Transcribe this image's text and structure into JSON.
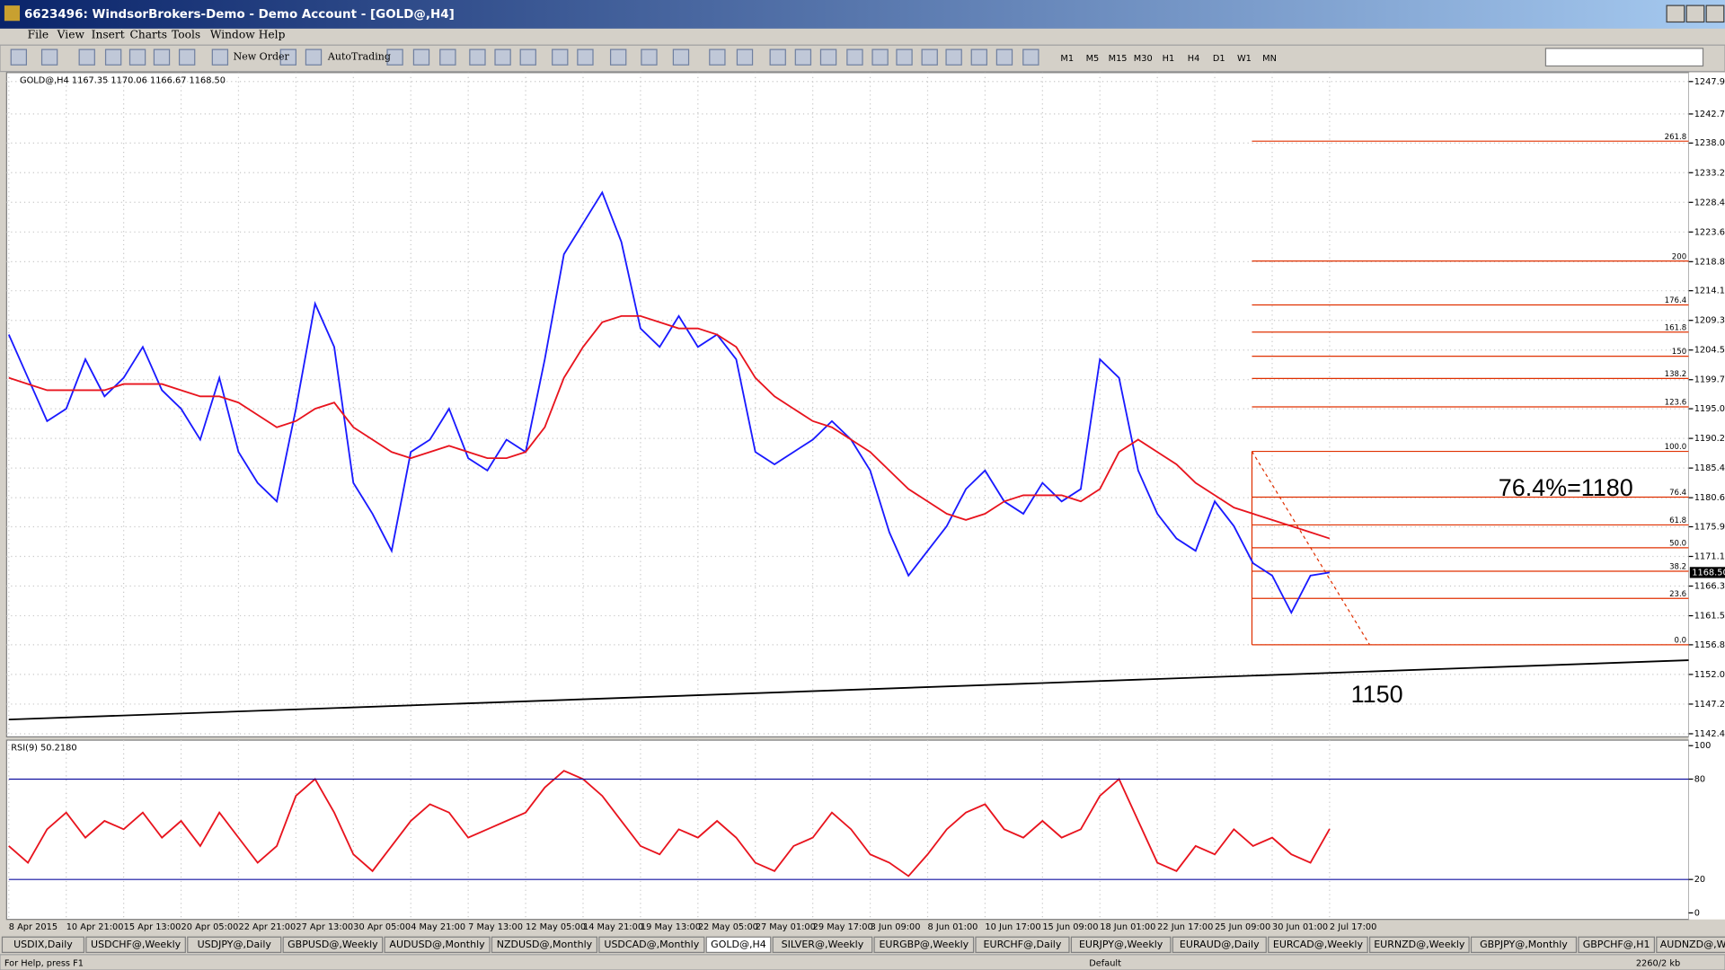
{
  "window": {
    "title": "6623496: WindsorBrokers-Demo - Demo Account - [GOLD@,H4]"
  },
  "menu": [
    "File",
    "View",
    "Insert",
    "Charts",
    "Tools",
    "Window",
    "Help"
  ],
  "toolbar": {
    "new_order": "New Order",
    "autotrading": "AutoTrading",
    "timeframes": [
      "M1",
      "M5",
      "M15",
      "M30",
      "H1",
      "H4",
      "D1",
      "W1",
      "MN"
    ]
  },
  "chart_data": [
    {
      "type": "line",
      "title": "GOLD@,H4  1167.35 1170.06 1166.67 1168.50",
      "categories": [
        "8 Apr 2015",
        null,
        null,
        "10 Apr 21:00",
        null,
        null,
        "15 Apr 13:00",
        null,
        null,
        "20 Apr 05:00",
        null,
        null,
        "22 Apr 21:00",
        null,
        null,
        "27 Apr 13:00",
        null,
        null,
        "30 Apr 05:00",
        null,
        null,
        "4 May 21:00",
        null,
        null,
        "7 May 13:00",
        null,
        null,
        "12 May 05:00",
        null,
        null,
        "14 May 21:00",
        null,
        null,
        "19 May 13:00",
        null,
        null,
        "22 May 05:00",
        null,
        null,
        "27 May 01:00",
        null,
        null,
        "29 May 17:00",
        null,
        null,
        "3 Jun 09:00",
        null,
        null,
        "8 Jun 01:00",
        null,
        null,
        "10 Jun 17:00",
        null,
        null,
        "15 Jun 09:00",
        null,
        null,
        "18 Jun 01:00",
        null,
        null,
        "22 Jun 17:00",
        null,
        null,
        "25 Jun 09:00",
        null,
        null,
        "30 Jun 01:00",
        null,
        null,
        "2 Jul 17:00"
      ],
      "series": [
        {
          "color": "#1a1aff",
          "values": [
            1207,
            1200,
            1193,
            1195,
            1203,
            1197,
            1200,
            1205,
            1198,
            1195,
            1190,
            1200,
            1188,
            1183,
            1180,
            1195,
            1212,
            1205,
            1183,
            1178,
            1172,
            1188,
            1190,
            1195,
            1187,
            1185,
            1190,
            1188,
            1203,
            1220,
            1225,
            1230,
            1222,
            1208,
            1205,
            1210,
            1205,
            1207,
            1203,
            1188,
            1186,
            1188,
            1190,
            1193,
            1190,
            1185,
            1175,
            1168,
            1172,
            1176,
            1182,
            1185,
            1180,
            1178,
            1183,
            1180,
            1182,
            1203,
            1200,
            1185,
            1178,
            1174,
            1172,
            1180,
            1176,
            1170,
            1168,
            1162,
            1168,
            1168.5
          ]
        },
        {
          "color": "#e8141e",
          "values": [
            1200,
            1199,
            1198,
            1198,
            1198,
            1198,
            1199,
            1199,
            1199,
            1198,
            1197,
            1197,
            1196,
            1194,
            1192,
            1193,
            1195,
            1196,
            1192,
            1190,
            1188,
            1187,
            1188,
            1189,
            1188,
            1187,
            1187,
            1188,
            1192,
            1200,
            1205,
            1209,
            1210,
            1210,
            1209,
            1208,
            1208,
            1207,
            1205,
            1200,
            1197,
            1195,
            1193,
            1192,
            1190,
            1188,
            1185,
            1182,
            1180,
            1178,
            1177,
            1178,
            1180,
            1181,
            1181,
            1181,
            1180,
            1182,
            1188,
            1190,
            1188,
            1186,
            1183,
            1181,
            1179,
            1178,
            1177,
            1176,
            1175,
            1174
          ]
        }
      ],
      "ylim": [
        1141.9,
        1249.4
      ],
      "yticks": [
        1247.95,
        {
          "value": 1242.7,
          "label": "1242.70"
        },
        {
          "value": 1238,
          "label": "1238.00"
        },
        {
          "value": 1233.2,
          "label": "1233.20"
        },
        {
          "value": 1228.4,
          "label": "1228.40"
        },
        {
          "value": 1223.6,
          "label": "1223.60"
        },
        {
          "value": 1218.8,
          "label": "1218.80"
        },
        {
          "value": 1214.1,
          "label": "1214.10"
        },
        {
          "value": 1209.3,
          "label": "1209.30"
        },
        {
          "value": 1204.5,
          "label": "1204.50"
        },
        {
          "value": 1199.7,
          "label": "1199.70"
        },
        {
          "value": 1195,
          "label": "1195.00"
        },
        {
          "value": 1190.2,
          "label": "1190.20"
        },
        {
          "value": 1185.4,
          "label": "1185.40"
        },
        {
          "value": 1180.6,
          "label": "1180.60"
        },
        {
          "value": 1175.9,
          "label": "1175.90"
        },
        {
          "value": 1171.1,
          "label": "1171.10"
        },
        {
          "value": 1166.3,
          "label": "1166.30"
        },
        {
          "value": 1161.5,
          "label": "1161.50"
        },
        {
          "value": 1156.8,
          "label": "1156.80"
        },
        {
          "value": 1152,
          "label": "1152.00"
        },
        {
          "value": 1147.2,
          "label": "1147.20"
        },
        {
          "value": 1142.4,
          "label": "1142.40"
        }
      ],
      "grid": true,
      "price_label": {
        "value": 1168.5,
        "label": "1168.50"
      },
      "fibonacci": [
        {
          "label": "261.8",
          "price": 1238.3
        },
        {
          "label": "200",
          "price": 1218.9
        },
        {
          "label": "176.4",
          "price": 1211.8
        },
        {
          "label": "161.8",
          "price": 1207.4
        },
        {
          "label": "150",
          "price": 1203.5
        },
        {
          "label": "138.2",
          "price": 1199.9
        },
        {
          "label": "123.6",
          "price": 1195.3
        },
        {
          "label": "100.0",
          "price": 1188.1
        },
        {
          "label": "76.4",
          "price": 1180.7
        },
        {
          "label": "61.8",
          "price": 1176.2
        },
        {
          "label": "50.0",
          "price": 1172.5
        },
        {
          "label": "38.2",
          "price": 1168.7
        },
        {
          "label": "23.6",
          "price": 1164.3
        },
        {
          "label": "0.0",
          "price": 1156.8
        }
      ],
      "trendline": [
        1144.7,
        1154.3
      ],
      "annotations": [
        "76.4%=1180",
        "1150"
      ]
    },
    {
      "type": "line",
      "title": "RSI(9) 50.2180",
      "series": [
        {
          "color": "#e8141e",
          "values": [
            40,
            30,
            50,
            60,
            45,
            55,
            50,
            60,
            45,
            55,
            40,
            60,
            45,
            30,
            40,
            70,
            80,
            60,
            35,
            25,
            40,
            55,
            65,
            60,
            45,
            50,
            55,
            60,
            75,
            85,
            80,
            70,
            55,
            40,
            35,
            50,
            45,
            55,
            45,
            30,
            25,
            40,
            45,
            60,
            50,
            35,
            30,
            22,
            35,
            50,
            60,
            65,
            50,
            45,
            55,
            45,
            50,
            70,
            80,
            55,
            30,
            25,
            40,
            35,
            50,
            40,
            45,
            35,
            30,
            50.2
          ]
        }
      ],
      "ylim": [
        -3.9,
        103.3
      ],
      "yticks": [
        100,
        80,
        20,
        0
      ],
      "levels": [
        80,
        20
      ]
    }
  ],
  "tabs": [
    "USDIX,Daily",
    "USDCHF@,Weekly",
    "USDJPY@,Daily",
    "GBPUSD@,Weekly",
    "AUDUSD@,Monthly",
    "NZDUSD@,Monthly",
    "USDCAD@,Monthly",
    "GOLD@,H4",
    "SILVER@,Weekly",
    "EURGBP@,Weekly",
    "EURCHF@,Daily",
    "EURJPY@,Weekly",
    "EURAUD@,Daily",
    "EURCAD@,Weekly",
    "EURNZD@,Weekly",
    "GBPJPY@,Monthly",
    "GBPCHF@,H1",
    "AUDNZD@,Weekly"
  ],
  "status": {
    "help": "For Help, press F1",
    "profile": "Default",
    "traffic": "2260/2 kb"
  }
}
